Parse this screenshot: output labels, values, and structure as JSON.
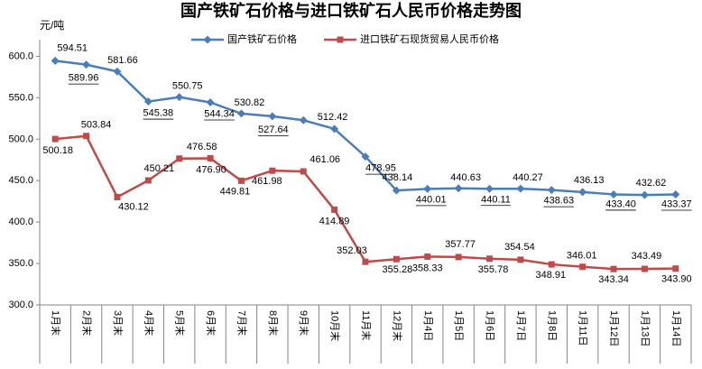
{
  "chart_data": {
    "type": "line",
    "title": "国产铁矿石价格与进口铁矿石人民币价格走势图",
    "ylabel": "元/吨",
    "xlabel": "",
    "ylim": [
      300,
      620
    ],
    "yticks": [
      "300.0",
      "350.0",
      "400.0",
      "450.0",
      "500.0",
      "550.0",
      "600.0"
    ],
    "grid": false,
    "legend_position": "top",
    "categories": [
      "1月末",
      "2月末",
      "3月末",
      "4月末",
      "5月末",
      "6月末",
      "7月末",
      "8月末",
      "9月末",
      "10月末",
      "11月末",
      "12月末",
      "1月4日",
      "1月5日",
      "1月6日",
      "1月7日",
      "1月8日",
      "1月11日",
      "1月12日",
      "1月13日",
      "1月14日"
    ],
    "series": [
      {
        "name": "国产铁矿石价格",
        "color": "#4A7EBB",
        "marker": "diamond",
        "values": [
          594.51,
          589.96,
          581.66,
          545.38,
          550.75,
          544.34,
          530.82,
          527.64,
          522.8,
          512.42,
          478.95,
          438.14,
          440.01,
          440.63,
          440.11,
          440.27,
          438.63,
          436.13,
          433.4,
          432.62,
          433.37
        ],
        "data_labels": [
          "594.51",
          "589.96",
          "581.66",
          "545.38",
          "550.75",
          "544.34",
          "530.82",
          "527.64",
          "",
          "512.42",
          "478.95",
          "438.14",
          "440.01",
          "440.63",
          "440.11",
          "440.27",
          "438.63",
          "436.13",
          "433.40",
          "432.62",
          "433.37"
        ]
      },
      {
        "name": "进口铁矿石现货贸易人民币价格",
        "color": "#BE4B48",
        "marker": "square",
        "values": [
          500.18,
          503.84,
          430.12,
          450.21,
          476.58,
          476.9,
          449.81,
          461.98,
          461.06,
          414.89,
          352.03,
          355.28,
          358.33,
          357.77,
          355.78,
          354.54,
          348.91,
          346.01,
          343.34,
          343.49,
          343.9
        ],
        "data_labels": [
          "500.18",
          "503.84",
          "430.12",
          "450.21",
          "476.58",
          "476.90",
          "449.81",
          "461.98",
          "461.06",
          "414.89",
          "352.03",
          "355.28",
          "358.33",
          "357.77",
          "355.78",
          "354.54",
          "348.91",
          "346.01",
          "343.34",
          "343.49",
          "343.90"
        ]
      }
    ]
  }
}
